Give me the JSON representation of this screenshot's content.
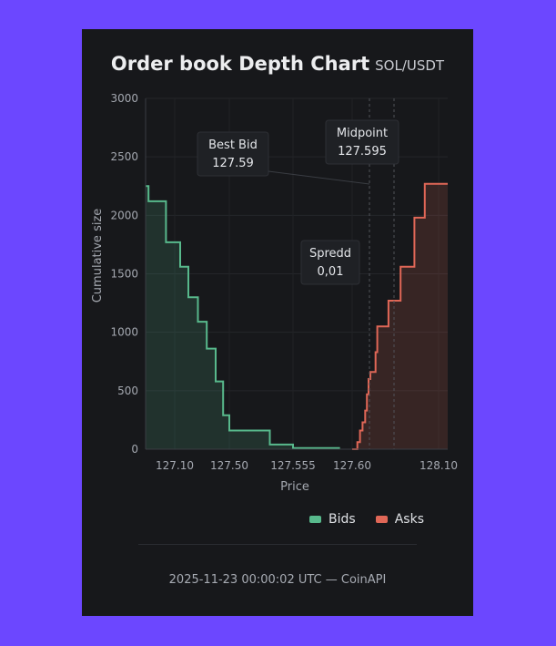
{
  "header": {
    "title": "Order book Depth Chart",
    "subtitle": "SOL/USDT"
  },
  "chart_data": {
    "type": "area",
    "xlabel": "Price",
    "ylabel": "Cumulative size",
    "xlim": [
      127.0,
      128.15
    ],
    "ylim": [
      0,
      3000
    ],
    "y_ticks": [
      0,
      500,
      1000,
      1500,
      2000,
      2500,
      3000
    ],
    "x_ticks": [
      {
        "value": 127.1,
        "label": "127.10"
      },
      {
        "value": 127.5,
        "label": "127.50"
      },
      {
        "value": 127.555,
        "label": "127.555"
      },
      {
        "value": 127.6,
        "label": "127.60"
      },
      {
        "value": 128.1,
        "label": "128.10"
      }
    ],
    "grid": true,
    "series": [
      {
        "name": "Bids",
        "color": "#58b98c",
        "x": [
          127.0,
          127.01,
          127.07,
          127.14,
          127.2,
          127.27,
          127.335,
          127.4,
          127.455,
          127.5,
          127.535,
          127.555,
          127.58,
          127.59
        ],
        "y": [
          2250,
          2120,
          1770,
          1560,
          1300,
          1090,
          860,
          580,
          290,
          160,
          40,
          10,
          10,
          0
        ]
      },
      {
        "name": "Asks",
        "color": "#e06757",
        "x": [
          127.6,
          127.63,
          127.645,
          127.66,
          127.675,
          127.685,
          127.695,
          127.705,
          127.735,
          127.745,
          127.81,
          127.88,
          127.96,
          128.02,
          128.08,
          128.15
        ],
        "y": [
          0,
          60,
          160,
          230,
          330,
          470,
          600,
          660,
          830,
          1050,
          1270,
          1560,
          1980,
          2270,
          2270,
          2270
        ]
      }
    ],
    "annotations": [
      {
        "label": "Best Bid",
        "value": "127.59",
        "x": 127.59
      },
      {
        "label": "Midpoint",
        "value": "127.595",
        "x": 127.595
      },
      {
        "label": "Spredd",
        "value": "0,01"
      }
    ],
    "legend_placement": "bottom-right"
  },
  "footer": {
    "text": "2025-11-23 00:00:02 UTC — CoinAPI"
  }
}
